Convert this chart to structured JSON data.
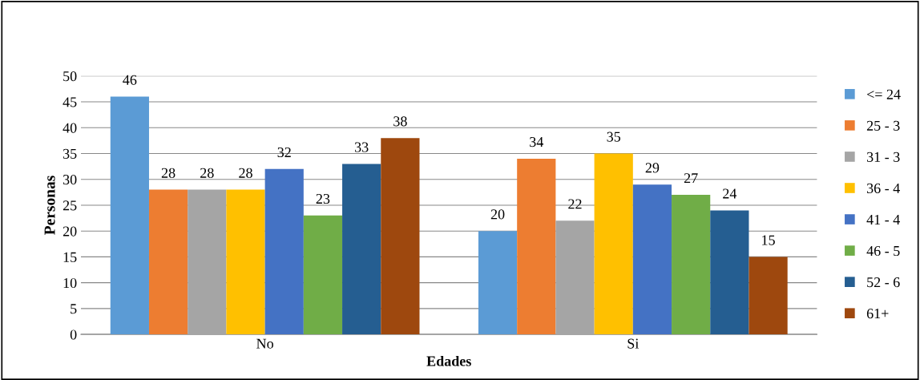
{
  "chart_data": {
    "type": "bar",
    "xlabel": "Edades",
    "ylabel": "Personas",
    "categories": [
      "No",
      "Si"
    ],
    "series": [
      {
        "name": "<= 24",
        "color": "#5b9bd5",
        "values": [
          46,
          20
        ]
      },
      {
        "name": "25 - 3",
        "color": "#ed7d31",
        "values": [
          28,
          34
        ]
      },
      {
        "name": "31 - 3",
        "color": "#a5a5a5",
        "values": [
          28,
          22
        ]
      },
      {
        "name": "36 - 4",
        "color": "#ffc000",
        "values": [
          28,
          35
        ]
      },
      {
        "name": "41 - 4",
        "color": "#4472c4",
        "values": [
          32,
          29
        ]
      },
      {
        "name": "46 - 5",
        "color": "#70ad47",
        "values": [
          23,
          27
        ]
      },
      {
        "name": "52 - 6",
        "color": "#255e91",
        "values": [
          33,
          24
        ]
      },
      {
        "name": "61+",
        "color": "#9e480e",
        "values": [
          38,
          15
        ]
      }
    ],
    "ylim": [
      0,
      50
    ],
    "yticks": [
      0,
      5,
      10,
      15,
      20,
      25,
      30,
      35,
      40,
      45,
      50
    ],
    "grid": "y",
    "legend": "right",
    "data_labels": true
  }
}
